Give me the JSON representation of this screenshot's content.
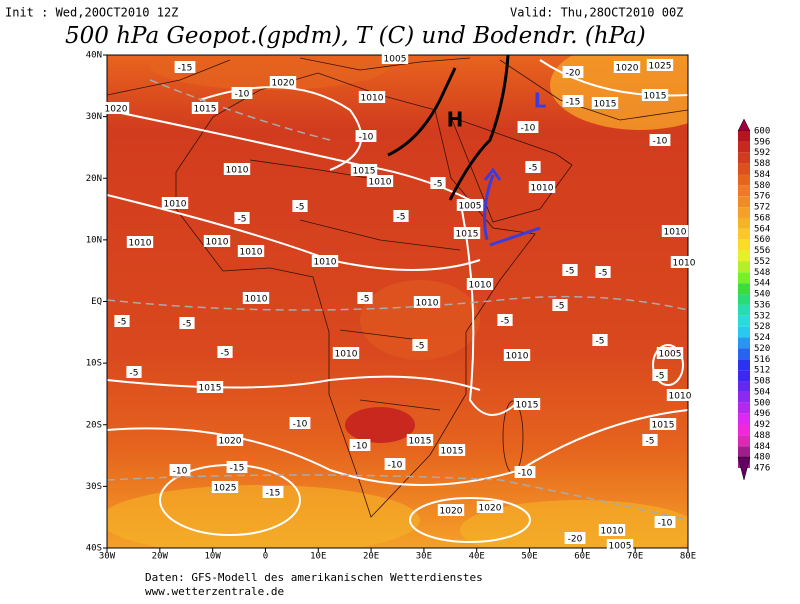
{
  "header": {
    "init": "Init : Wed,20OCT2010 12Z",
    "valid": "Valid: Thu,28OCT2010 00Z",
    "title": "500 hPa Geopot.(gpdm), T (C) und Bodendr. (hPa)"
  },
  "map": {
    "lon_labels": [
      "30W",
      "20W",
      "10W",
      "0",
      "10E",
      "20E",
      "30E",
      "40E",
      "50E",
      "60E",
      "70E",
      "80E"
    ],
    "lat_labels": [
      "40N",
      "30N",
      "20N",
      "10N",
      "EQ",
      "10S",
      "20S",
      "30S",
      "40S"
    ],
    "pressure_systems": [
      "H",
      "L"
    ],
    "contour_labels": [
      "1005",
      "1020",
      "1010",
      "1015",
      "1020",
      "1015",
      "1010",
      "1010",
      "1010",
      "1010",
      "1010",
      "1010",
      "1010",
      "1010",
      "1010",
      "1010",
      "1010",
      "1010",
      "1005",
      "1015",
      "1015",
      "1015",
      "1020",
      "1015",
      "1015",
      "1025",
      "1020",
      "1020",
      "1010",
      "1005",
      "1010",
      "1015",
      "1020",
      "1025",
      "1015",
      "1015",
      "1010",
      "1005",
      "1010",
      "1010",
      "-10",
      "-15",
      "-10",
      "-10",
      "-5",
      "-5",
      "-5",
      "-5",
      "-5",
      "-10",
      "-20",
      "-15",
      "-5",
      "-5",
      "-5",
      "-5",
      "-10",
      "-10",
      "-15",
      "-15",
      "-10",
      "-10",
      "-10",
      "-5",
      "-10",
      "-20",
      "-5",
      "-5",
      "-5",
      "-5",
      "-5",
      "-5",
      "-5",
      "-5"
    ]
  },
  "colorbar": {
    "levels": [
      600,
      596,
      592,
      588,
      584,
      580,
      576,
      572,
      568,
      564,
      560,
      556,
      552,
      548,
      544,
      540,
      536,
      532,
      528,
      524,
      520,
      516,
      512,
      508,
      504,
      500,
      496,
      492,
      488,
      484,
      480,
      476
    ],
    "colors": [
      "#a0003c",
      "#b4141e",
      "#c8281e",
      "#d23c1e",
      "#dc501e",
      "#e6641e",
      "#f07828",
      "#f08c28",
      "#f5a028",
      "#f5b428",
      "#fac828",
      "#fadc28",
      "#e6f028",
      "#b4f028",
      "#78f028",
      "#3cdc3c",
      "#28dc78",
      "#28dcb4",
      "#28dcdc",
      "#28c8f0",
      "#2896f0",
      "#2864f0",
      "#2832f0",
      "#3c28f0",
      "#6428f0",
      "#8c28f0",
      "#b428f0",
      "#dc28f0",
      "#f028dc",
      "#dc28b4",
      "#a01e8c",
      "#640064"
    ]
  },
  "footer": {
    "line1": "Daten: GFS-Modell des amerikanischen Wetterdienstes",
    "line2": "www.wetterzentrale.de"
  }
}
